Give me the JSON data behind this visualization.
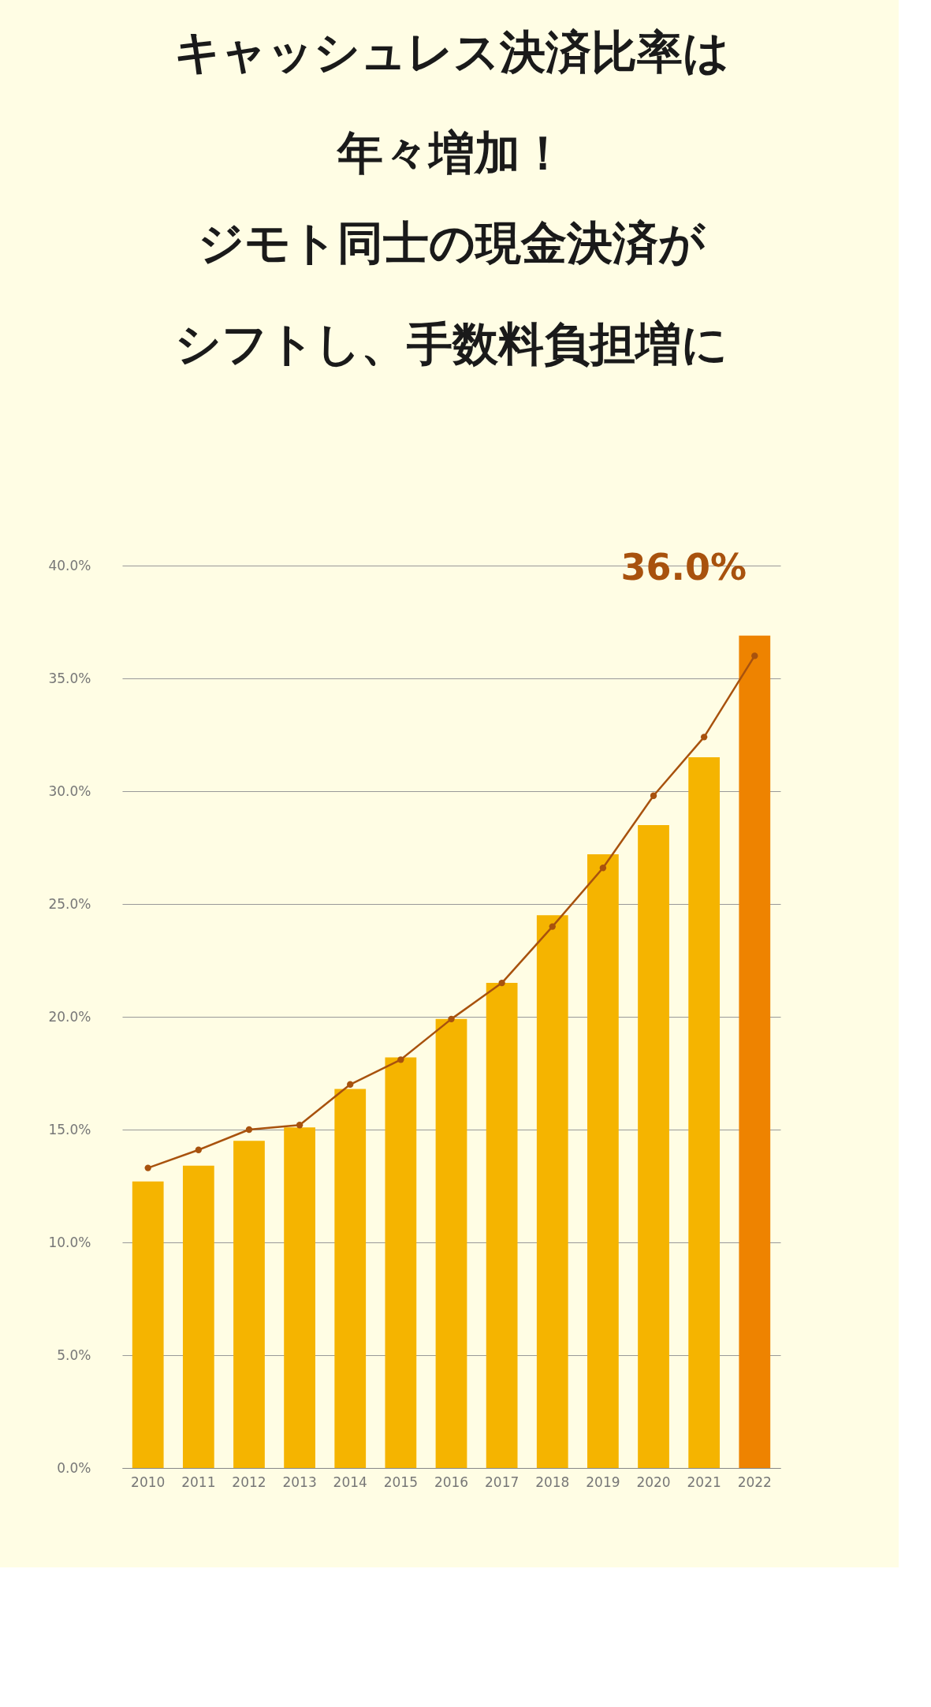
{
  "chart_data": {
    "type": "bar",
    "title": "キャッシュレス決済比率は年々増加！",
    "subtitle": "ジモト同士の現金決済がシフトし、手数料負担増に",
    "categories": [
      "2010",
      "2011",
      "2012",
      "2013",
      "2014",
      "2015",
      "2016",
      "2017",
      "2018",
      "2019",
      "2020",
      "2021",
      "2022"
    ],
    "series": [
      {
        "colors": [
          "#f5b400",
          "#f5b400",
          "#f5b400",
          "#f5b400",
          "#f5b400",
          "#f5b400",
          "#f5b400",
          "#f5b400",
          "#f5b400",
          "#f5b400",
          "#f5b400",
          "#f5b400",
          "#ee8300"
        ],
        "values": [
          12.7,
          13.4,
          14.5,
          15.1,
          16.8,
          18.2,
          19.9,
          21.5,
          24.5,
          27.2,
          28.5,
          31.5,
          36.9
        ]
      },
      {
        "type": "line",
        "color": "#a8520e",
        "marker": "circle",
        "values": [
          13.3,
          14.1,
          15.0,
          15.2,
          17.0,
          18.1,
          19.9,
          21.5,
          24.0,
          26.6,
          29.8,
          32.4,
          36.0
        ]
      }
    ],
    "ylim": [
      0,
      40
    ],
    "yticks": [
      {
        "value": 0,
        "label": "0.0%"
      },
      {
        "value": 5,
        "label": "5.0%"
      },
      {
        "value": 10,
        "label": "10.0%"
      },
      {
        "value": 15,
        "label": "15.0%"
      },
      {
        "value": 20,
        "label": "20.0%"
      },
      {
        "value": 25,
        "label": "25.0%"
      },
      {
        "value": 30,
        "label": "30.0%"
      },
      {
        "value": 35,
        "label": "35.0%"
      },
      {
        "value": 40,
        "label": "40.0%"
      }
    ],
    "grid": "y",
    "annotations": [
      {
        "text": "36.0%",
        "x": "2022",
        "y": 36.0
      }
    ]
  }
}
